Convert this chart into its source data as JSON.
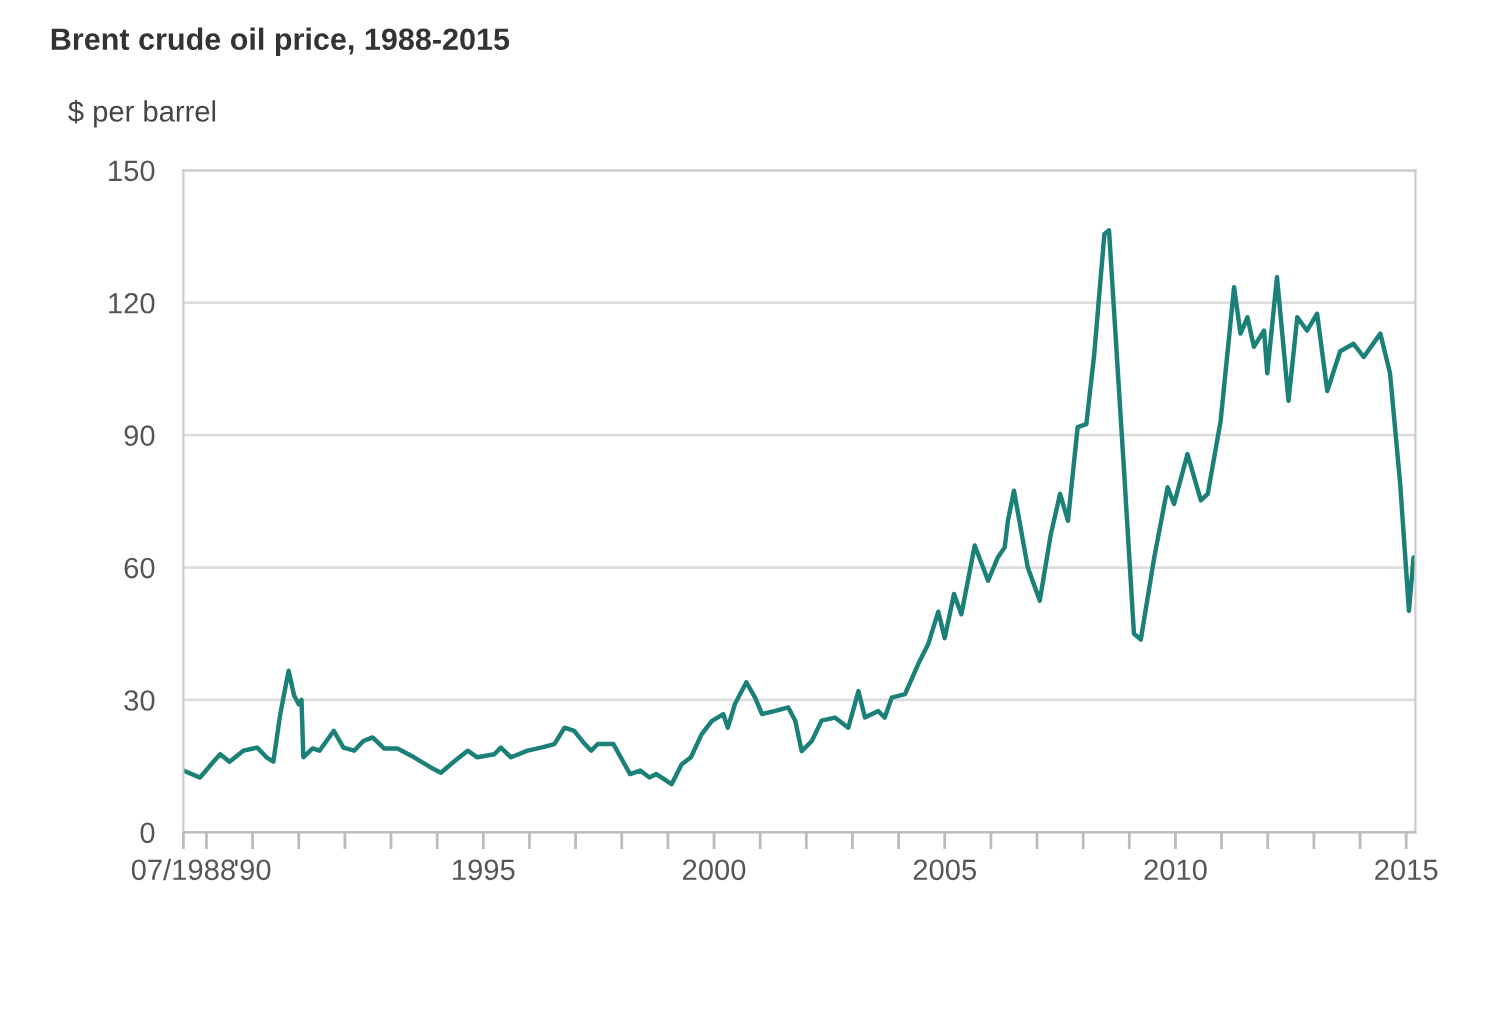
{
  "chart_data": {
    "type": "line",
    "title": "Brent crude oil price, 1988-2015",
    "ylabel": "$ per barrel",
    "x": [
      1988.5,
      1988.86,
      1989.15,
      1989.3,
      1989.5,
      1989.8,
      1990.1,
      1990.3,
      1990.45,
      1990.6,
      1990.78,
      1990.9,
      1991.0,
      1991.06,
      1991.1,
      1991.3,
      1991.45,
      1991.76,
      1991.97,
      1992.2,
      1992.4,
      1992.6,
      1992.85,
      1993.14,
      1993.5,
      1993.86,
      1994.08,
      1994.36,
      1994.66,
      1994.87,
      1995.24,
      1995.38,
      1995.6,
      1995.96,
      1996.25,
      1996.54,
      1996.76,
      1996.97,
      1997.2,
      1997.34,
      1997.48,
      1997.82,
      1998.18,
      1998.4,
      1998.6,
      1998.75,
      1999.08,
      1999.3,
      1999.5,
      1999.73,
      1999.95,
      2000.2,
      2000.3,
      2000.45,
      2000.7,
      2000.89,
      2001.04,
      2001.33,
      2001.61,
      2001.76,
      2001.9,
      2002.12,
      2002.33,
      2002.62,
      2002.91,
      2003.13,
      2003.27,
      2003.56,
      2003.7,
      2003.85,
      2004.14,
      2004.42,
      2004.64,
      2004.86,
      2005.0,
      2005.2,
      2005.36,
      2005.65,
      2005.94,
      2006.15,
      2006.3,
      2006.37,
      2006.5,
      2006.8,
      2007.06,
      2007.3,
      2007.5,
      2007.67,
      2007.88,
      2008.07,
      2008.24,
      2008.46,
      2008.56,
      2008.89,
      2009.1,
      2009.25,
      2009.54,
      2009.65,
      2009.83,
      2009.97,
      2010.26,
      2010.55,
      2010.7,
      2010.98,
      2011.27,
      2011.41,
      2011.56,
      2011.7,
      2011.92,
      2011.99,
      2012.2,
      2012.45,
      2012.64,
      2012.85,
      2013.07,
      2013.29,
      2013.57,
      2013.86,
      2014.08,
      2014.44,
      2014.65,
      2014.87,
      2015.06,
      2015.16
    ],
    "series": [
      {
        "color": "#1b8077",
        "values": [
          14,
          12.4,
          16,
          17.7,
          16,
          18.5,
          19.2,
          17,
          16,
          26.8,
          36.6,
          31,
          29,
          30,
          17,
          19,
          18.5,
          23,
          19.2,
          18.5,
          20.7,
          21.5,
          19,
          19,
          17,
          14.7,
          13.5,
          16,
          18.5,
          17,
          17.7,
          19.2,
          17,
          18.5,
          19.2,
          20,
          23.7,
          23,
          20,
          18.5,
          20,
          20,
          13.2,
          14,
          12.4,
          13.2,
          10.9,
          15.4,
          17,
          22.2,
          25.2,
          26.8,
          23.7,
          29,
          34,
          30.5,
          26.8,
          27.5,
          28.3,
          25.3,
          18.4,
          20.7,
          25.3,
          26,
          23.7,
          32,
          26,
          27.5,
          26,
          30.5,
          31.3,
          38,
          42.6,
          50,
          44,
          54,
          49.4,
          65,
          57,
          62.3,
          64.6,
          70.6,
          77.4,
          60,
          52.5,
          67.6,
          76.7,
          70.6,
          91.8,
          92.5,
          108.4,
          135.6,
          136.4,
          81.2,
          45,
          43.7,
          62.3,
          68.3,
          78.2,
          74.4,
          85.7,
          75.2,
          76.7,
          93.3,
          123.5,
          113,
          116.7,
          110,
          113.7,
          104,
          125.8,
          97.8,
          116.7,
          113.7,
          117.5,
          100,
          109,
          110.7,
          107.7,
          113,
          104,
          79,
          50.2,
          62.3
        ]
      }
    ],
    "xlim": [
      1988.5,
      2015.2
    ],
    "ylim": [
      0,
      150
    ],
    "yticks": [
      0,
      30,
      60,
      90,
      120,
      150
    ],
    "xticks": [
      {
        "value": 1988.5,
        "label": "07/1988"
      },
      {
        "value": 1989,
        "label": null
      },
      {
        "value": 1990,
        "label": "'90"
      },
      {
        "value": 1991,
        "label": null
      },
      {
        "value": 1992,
        "label": null
      },
      {
        "value": 1993,
        "label": null
      },
      {
        "value": 1994,
        "label": null
      },
      1995,
      {
        "value": 1996,
        "label": null
      },
      {
        "value": 1997,
        "label": null
      },
      {
        "value": 1998,
        "label": null
      },
      {
        "value": 1999,
        "label": null
      },
      2000,
      {
        "value": 2001,
        "label": null
      },
      {
        "value": 2002,
        "label": null
      },
      {
        "value": 2003,
        "label": null
      },
      {
        "value": 2004,
        "label": null
      },
      2005,
      {
        "value": 2006,
        "label": null
      },
      {
        "value": 2007,
        "label": null
      },
      {
        "value": 2008,
        "label": null
      },
      {
        "value": 2009,
        "label": null
      },
      2010,
      {
        "value": 2011,
        "label": null
      },
      {
        "value": 2012,
        "label": null
      },
      {
        "value": 2013,
        "label": null
      },
      {
        "value": 2014,
        "label": null
      },
      2015
    ],
    "grid": "y",
    "legend": false,
    "marker": "none",
    "line_style": "solid"
  }
}
